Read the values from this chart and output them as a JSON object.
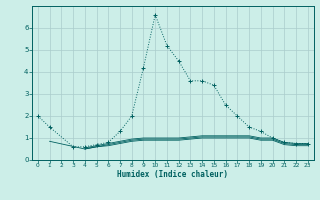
{
  "title": "",
  "xlabel": "Humidex (Indice chaleur)",
  "x": [
    0,
    1,
    2,
    3,
    4,
    5,
    6,
    7,
    8,
    9,
    10,
    11,
    12,
    13,
    14,
    15,
    16,
    17,
    18,
    19,
    20,
    21,
    22,
    23
  ],
  "line1": [
    2.0,
    1.5,
    null,
    0.6,
    0.6,
    0.7,
    0.8,
    1.3,
    2.0,
    4.2,
    6.6,
    5.2,
    4.5,
    3.6,
    3.6,
    3.4,
    2.5,
    2.0,
    1.5,
    1.3,
    1.0,
    0.8,
    0.75,
    0.75
  ],
  "line2": [
    null,
    null,
    null,
    null,
    0.55,
    0.65,
    0.75,
    0.85,
    0.95,
    1.0,
    1.0,
    1.0,
    1.0,
    1.05,
    1.1,
    1.1,
    1.1,
    1.1,
    1.1,
    1.0,
    1.0,
    0.8,
    0.75,
    0.75
  ],
  "line3": [
    null,
    null,
    null,
    null,
    0.5,
    0.6,
    0.7,
    0.8,
    0.9,
    0.95,
    0.95,
    0.95,
    0.95,
    1.0,
    1.05,
    1.05,
    1.05,
    1.05,
    1.05,
    0.95,
    0.95,
    0.75,
    0.7,
    0.7
  ],
  "line4": [
    null,
    0.85,
    null,
    null,
    0.5,
    0.6,
    0.65,
    0.75,
    0.85,
    0.9,
    0.9,
    0.9,
    0.9,
    0.95,
    1.0,
    1.0,
    1.0,
    1.0,
    1.0,
    0.9,
    0.9,
    0.7,
    0.65,
    0.65
  ],
  "color": "#006060",
  "bg_color": "#cceee8",
  "grid_color": "#aacccc",
  "ylim": [
    0,
    7
  ],
  "xlim": [
    -0.5,
    23.5
  ],
  "yticks": [
    0,
    1,
    2,
    3,
    4,
    5,
    6
  ],
  "xticks": [
    0,
    1,
    2,
    3,
    4,
    5,
    6,
    7,
    8,
    9,
    10,
    11,
    12,
    13,
    14,
    15,
    16,
    17,
    18,
    19,
    20,
    21,
    22,
    23
  ]
}
